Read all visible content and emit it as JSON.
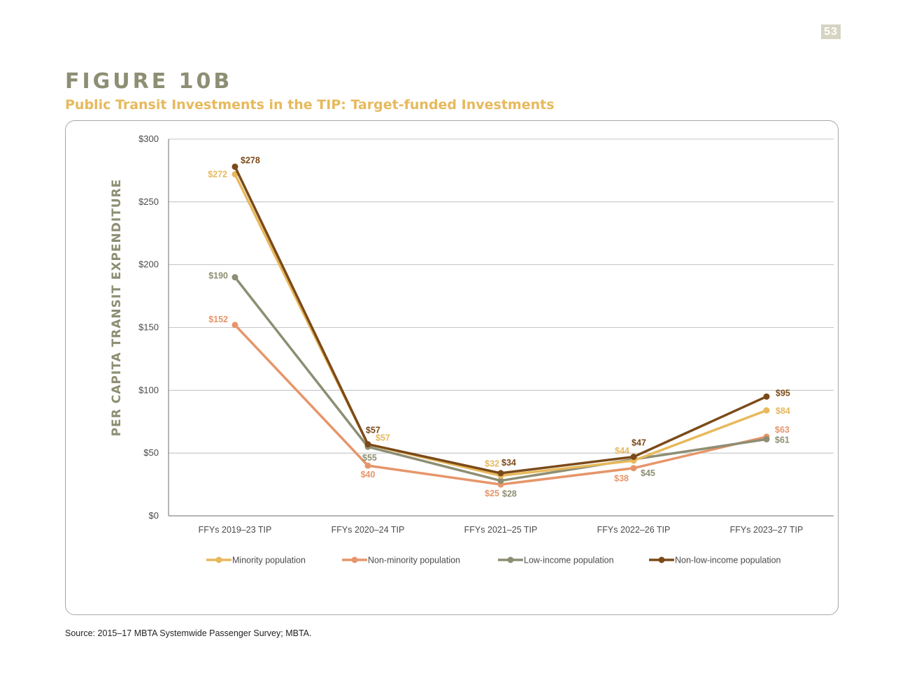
{
  "page_number": "53",
  "figure_label": "FIGURE 10B",
  "subtitle": "Public Transit Investments in the TIP: Target-funded Investments",
  "source": "Source: 2015–17 MBTA Systemwide Passenger Survey; MBTA.",
  "chart_data": {
    "type": "line",
    "title": "Public Transit Investments in the TIP: Target-funded Investments",
    "xlabel": "",
    "ylabel": "PER CAPITA TRANSIT EXPENDITURE",
    "ylim": [
      0,
      300
    ],
    "yticks": [
      0,
      50,
      100,
      150,
      200,
      250,
      300
    ],
    "ytick_labels": [
      "$0",
      "$50",
      "$100",
      "$150",
      "$200",
      "$250",
      "$300"
    ],
    "grid": true,
    "legend_position": "bottom",
    "categories": [
      "FFYs 2019–23 TIP",
      "FFYs 2020–24 TIP",
      "FFYs 2021–25 TIP",
      "FFYs 2022–26 TIP",
      "FFYs 2023–27 TIP"
    ],
    "series": [
      {
        "name": "Minority population",
        "color": "#e7b95c",
        "values": [
          272,
          57,
          32,
          44,
          84
        ],
        "labels": [
          "$272",
          "$57",
          "$32",
          "$44",
          "$84"
        ]
      },
      {
        "name": "Non-minority population",
        "color": "#e6956a",
        "values": [
          152,
          40,
          25,
          38,
          63
        ],
        "labels": [
          "$152",
          "$40",
          "$25",
          "$38",
          "$63"
        ]
      },
      {
        "name": "Low-income population",
        "color": "#8d8e73",
        "values": [
          190,
          55,
          28,
          45,
          61
        ],
        "labels": [
          "$190",
          "$55",
          "$28",
          "$45",
          "$61"
        ]
      },
      {
        "name": "Non-low-income population",
        "color": "#7b4a19",
        "values": [
          278,
          57,
          34,
          47,
          95
        ],
        "labels": [
          "$278",
          "$57",
          "$34",
          "$47",
          "$95"
        ]
      }
    ]
  }
}
